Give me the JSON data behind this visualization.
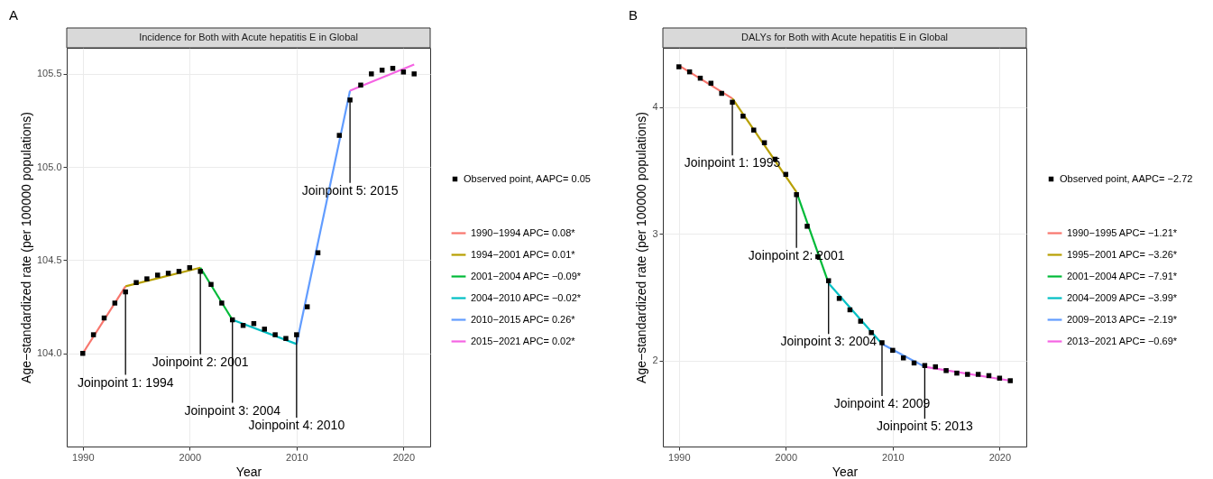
{
  "chart_data": [
    {
      "type": "line",
      "title": "Incidence for Both with Acute hepatitis E in Global",
      "xlabel": "Year",
      "ylabel": "Age−standardized rate (per 100000 populations)",
      "xlim": [
        1988.5,
        2022.5
      ],
      "ylim": [
        103.5,
        105.64
      ],
      "xticks": [
        1990,
        2000,
        2010,
        2020
      ],
      "yticks": [
        {
          "value": 104,
          "label": "104.0"
        },
        104.5,
        {
          "value": 105,
          "label": "105.0"
        },
        105.5
      ],
      "grid": true,
      "legend": "right",
      "annotations": [
        "A",
        {
          "text": "Joinpoint 1: 1994",
          "x": 1994,
          "y": 104.33
        },
        {
          "text": "Joinpoint 2: 2001",
          "x": 2001,
          "y": 104.44
        },
        {
          "text": "Joinpoint 3: 2004",
          "x": 2004,
          "y": 104.18
        },
        {
          "text": "Joinpoint 4: 2010",
          "x": 2010,
          "y": 104.1
        },
        {
          "text": "Joinpoint 5: 2015",
          "x": 2015,
          "y": 105.36
        }
      ],
      "series": [
        {
          "type": "scatter",
          "name": "Observed point, AAPC= 0.05",
          "color": "#000000",
          "marker": "square",
          "x": [
            1990,
            1991,
            1992,
            1993,
            1994,
            1995,
            1996,
            1997,
            1998,
            1999,
            2000,
            2001,
            2002,
            2003,
            2004,
            2005,
            2006,
            2007,
            2008,
            2009,
            2010,
            2011,
            2012,
            2014,
            2015,
            2016,
            2017,
            2018,
            2019,
            2020,
            2021
          ],
          "values": [
            104.0,
            104.1,
            104.19,
            104.27,
            104.33,
            104.38,
            104.4,
            104.42,
            104.43,
            104.44,
            104.46,
            104.44,
            104.37,
            104.27,
            104.18,
            104.15,
            104.16,
            104.13,
            104.1,
            104.08,
            104.1,
            104.25,
            104.54,
            105.17,
            105.36,
            105.44,
            105.5,
            105.52,
            105.53,
            105.51,
            105.5
          ]
        },
        {
          "name": "1990−1994 APC= 0.08*",
          "color": "#f8766d",
          "x": [
            1990,
            1994
          ],
          "values": [
            104.0,
            104.36
          ]
        },
        {
          "name": "1994−2001 APC= 0.01*",
          "color": "#b79f00",
          "x": [
            1994,
            2001
          ],
          "values": [
            104.36,
            104.46
          ]
        },
        {
          "name": "2001−2004 APC= −0.09*",
          "color": "#00ba38",
          "x": [
            2001,
            2004
          ],
          "values": [
            104.46,
            104.18
          ]
        },
        {
          "name": "2004−2010 APC= −0.02*",
          "color": "#00bfc4",
          "x": [
            2004,
            2010
          ],
          "values": [
            104.18,
            104.05
          ]
        },
        {
          "name": "2010−2015 APC= 0.26*",
          "color": "#619cff",
          "x": [
            2010,
            2015
          ],
          "values": [
            104.05,
            105.41
          ]
        },
        {
          "name": "2015−2021 APC= 0.02*",
          "color": "#f564e3",
          "x": [
            2015,
            2021
          ],
          "values": [
            105.41,
            105.55
          ]
        }
      ]
    },
    {
      "type": "line",
      "title": "DALYs for Both with Acute hepatitis E in Global",
      "xlabel": "Year",
      "ylabel": "Age−standardized rate (per 100000 populations)",
      "xlim": [
        1988.5,
        2022.5
      ],
      "ylim": [
        1.32,
        4.47
      ],
      "xticks": [
        1990,
        2000,
        2010,
        2020
      ],
      "yticks": [
        2,
        3,
        4
      ],
      "grid": true,
      "legend": "right",
      "annotations": [
        "B",
        {
          "text": "Joinpoint 1: 1995",
          "x": 1995,
          "y": 4.04
        },
        {
          "text": "Joinpoint 2: 2001",
          "x": 2001,
          "y": 3.31
        },
        {
          "text": "Joinpoint 3: 2004",
          "x": 2004,
          "y": 2.63
        },
        {
          "text": "Joinpoint 4: 2009",
          "x": 2009,
          "y": 2.14
        },
        {
          "text": "Joinpoint 5: 2013",
          "x": 2013,
          "y": 1.96
        }
      ],
      "series": [
        {
          "type": "scatter",
          "name": "Observed point, AAPC= −2.72",
          "color": "#000000",
          "marker": "square",
          "x": [
            1990,
            1991,
            1992,
            1993,
            1994,
            1995,
            1996,
            1997,
            1998,
            1999,
            2000,
            2001,
            2002,
            2003,
            2004,
            2005,
            2006,
            2007,
            2008,
            2009,
            2010,
            2011,
            2012,
            2013,
            2014,
            2015,
            2016,
            2017,
            2018,
            2019,
            2020,
            2021
          ],
          "values": [
            4.32,
            4.28,
            4.23,
            4.19,
            4.11,
            4.04,
            3.93,
            3.82,
            3.72,
            3.59,
            3.47,
            3.31,
            3.06,
            2.82,
            2.63,
            2.49,
            2.4,
            2.31,
            2.22,
            2.14,
            2.08,
            2.02,
            1.98,
            1.96,
            1.95,
            1.92,
            1.9,
            1.89,
            1.89,
            1.88,
            1.86,
            1.84
          ]
        },
        {
          "name": "1990−1995 APC= −1.21*",
          "color": "#f8766d",
          "x": [
            1990,
            1995
          ],
          "values": [
            4.33,
            4.07
          ]
        },
        {
          "name": "1995−2001 APC= −3.26*",
          "color": "#b79f00",
          "x": [
            1995,
            2001
          ],
          "values": [
            4.07,
            3.33
          ]
        },
        {
          "name": "2001−2004 APC= −7.91*",
          "color": "#00ba38",
          "x": [
            2001,
            2004
          ],
          "values": [
            3.33,
            2.61
          ]
        },
        {
          "name": "2004−2009 APC= −3.99*",
          "color": "#00bfc4",
          "x": [
            2004,
            2009
          ],
          "values": [
            2.61,
            2.13
          ]
        },
        {
          "name": "2009−2013 APC= −2.19*",
          "color": "#619cff",
          "x": [
            2009,
            2013
          ],
          "values": [
            2.13,
            1.95
          ]
        },
        {
          "name": "2013−2021 APC= −0.69*",
          "color": "#f564e3",
          "x": [
            2013,
            2021
          ],
          "values": [
            1.95,
            1.84
          ]
        }
      ]
    }
  ]
}
